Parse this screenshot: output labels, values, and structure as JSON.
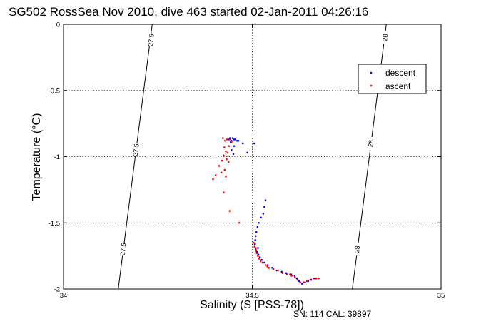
{
  "chart_data": {
    "type": "scatter",
    "title": "SG502 RossSea Nov 2010, dive 463 started 02-Jan-2011 04:26:16",
    "xlabel": "Salinity (S [PSS-78])",
    "ylabel": "Temperature (°C)",
    "xlim": [
      34,
      35
    ],
    "ylim": [
      -2,
      0
    ],
    "xticks": [
      34,
      34.5,
      35
    ],
    "xtick_labels": [
      "34",
      "34.5",
      "35"
    ],
    "yticks": [
      0,
      -0.5,
      -1,
      -1.5,
      -2
    ],
    "ytick_labels": [
      "0",
      "-0.5",
      "-1",
      "-1.5",
      "-2"
    ],
    "grid": true,
    "legend_position": "top-right",
    "footer": "SN: 114  CAL: 39897",
    "isopycnals": [
      {
        "label": "27.5",
        "points": [
          [
            34.145,
            -2.0
          ],
          [
            34.235,
            0.0
          ]
        ],
        "labels": [
          {
            "text": "27.5",
            "at": [
              34.232,
              -0.12
            ]
          },
          {
            "text": "27.5",
            "at": [
              34.192,
              -0.95
            ]
          },
          {
            "text": "27.5",
            "at": [
              34.158,
              -1.7
            ]
          }
        ]
      },
      {
        "label": "28",
        "points": [
          [
            34.765,
            -2.0
          ],
          [
            34.855,
            0.0
          ]
        ],
        "labels": [
          {
            "text": "28",
            "at": [
              34.852,
              -0.1
            ]
          },
          {
            "text": "28",
            "at": [
              34.814,
              -0.9
            ]
          },
          {
            "text": "28",
            "at": [
              34.778,
              -1.7
            ]
          }
        ]
      }
    ],
    "series": [
      {
        "name": "descent",
        "color": "#0000ff",
        "points": [
          [
            34.441,
            -0.86
          ],
          [
            34.448,
            -0.86
          ],
          [
            34.452,
            -0.87
          ],
          [
            34.455,
            -0.87
          ],
          [
            34.445,
            -0.88
          ],
          [
            34.46,
            -0.88
          ],
          [
            34.463,
            -0.88
          ],
          [
            34.437,
            -0.87
          ],
          [
            34.443,
            -0.89
          ],
          [
            34.475,
            -0.9
          ],
          [
            34.452,
            -0.92
          ],
          [
            34.445,
            -0.95
          ],
          [
            34.45,
            -0.98
          ],
          [
            34.487,
            -0.97
          ],
          [
            34.505,
            -0.9
          ],
          [
            34.535,
            -1.33
          ],
          [
            34.532,
            -1.38
          ],
          [
            34.529,
            -1.43
          ],
          [
            34.523,
            -1.46
          ],
          [
            34.517,
            -1.5
          ],
          [
            34.514,
            -1.53
          ],
          [
            34.511,
            -1.57
          ],
          [
            34.509,
            -1.6
          ],
          [
            34.508,
            -1.63
          ],
          [
            34.507,
            -1.66
          ],
          [
            34.509,
            -1.7
          ],
          [
            34.512,
            -1.72
          ],
          [
            34.516,
            -1.74
          ],
          [
            34.52,
            -1.76
          ],
          [
            34.515,
            -1.69
          ],
          [
            34.525,
            -1.78
          ],
          [
            34.532,
            -1.8
          ],
          [
            34.541,
            -1.82
          ],
          [
            34.553,
            -1.84
          ],
          [
            34.565,
            -1.86
          ],
          [
            34.578,
            -1.87
          ],
          [
            34.59,
            -1.88
          ],
          [
            34.603,
            -1.89
          ],
          [
            34.612,
            -1.9
          ],
          [
            34.618,
            -1.92
          ],
          [
            34.624,
            -1.94
          ],
          [
            34.632,
            -1.96
          ],
          [
            34.64,
            -1.95
          ],
          [
            34.648,
            -1.94
          ],
          [
            34.656,
            -1.93
          ],
          [
            34.664,
            -1.92
          ],
          [
            34.668,
            -1.92
          ]
        ]
      },
      {
        "name": "ascent",
        "color": "#ff0000",
        "points": [
          [
            34.422,
            -0.86
          ],
          [
            34.428,
            -0.88
          ],
          [
            34.433,
            -0.87
          ],
          [
            34.44,
            -0.87
          ],
          [
            34.445,
            -0.89
          ],
          [
            34.426,
            -0.93
          ],
          [
            34.43,
            -0.96
          ],
          [
            34.424,
            -0.99
          ],
          [
            34.435,
            -0.97
          ],
          [
            34.438,
            -0.92
          ],
          [
            34.432,
            -1.02
          ],
          [
            34.437,
            -1.04
          ],
          [
            34.42,
            -1.03
          ],
          [
            34.412,
            -1.07
          ],
          [
            34.427,
            -1.1
          ],
          [
            34.418,
            -1.12
          ],
          [
            34.43,
            -1.15
          ],
          [
            34.403,
            -1.14
          ],
          [
            34.396,
            -1.17
          ],
          [
            34.424,
            -1.27
          ],
          [
            34.44,
            -1.41
          ],
          [
            34.465,
            -1.5
          ],
          [
            34.504,
            -1.65
          ],
          [
            34.506,
            -1.68
          ],
          [
            34.51,
            -1.71
          ],
          [
            34.512,
            -1.73
          ],
          [
            34.515,
            -1.75
          ],
          [
            34.518,
            -1.77
          ],
          [
            34.522,
            -1.79
          ],
          [
            34.527,
            -1.8
          ],
          [
            34.535,
            -1.82
          ],
          [
            34.544,
            -1.84
          ],
          [
            34.556,
            -1.85
          ],
          [
            34.568,
            -1.86
          ],
          [
            34.58,
            -1.88
          ],
          [
            34.592,
            -1.89
          ],
          [
            34.604,
            -1.9
          ],
          [
            34.613,
            -1.91
          ],
          [
            34.62,
            -1.93
          ],
          [
            34.627,
            -1.95
          ],
          [
            34.636,
            -1.95
          ],
          [
            34.645,
            -1.94
          ],
          [
            34.654,
            -1.93
          ],
          [
            34.662,
            -1.92
          ],
          [
            34.67,
            -1.92
          ],
          [
            34.676,
            -1.92
          ],
          [
            34.6,
            -1.89
          ],
          [
            34.54,
            -1.83
          ],
          [
            34.509,
            -1.69
          ]
        ]
      }
    ]
  }
}
